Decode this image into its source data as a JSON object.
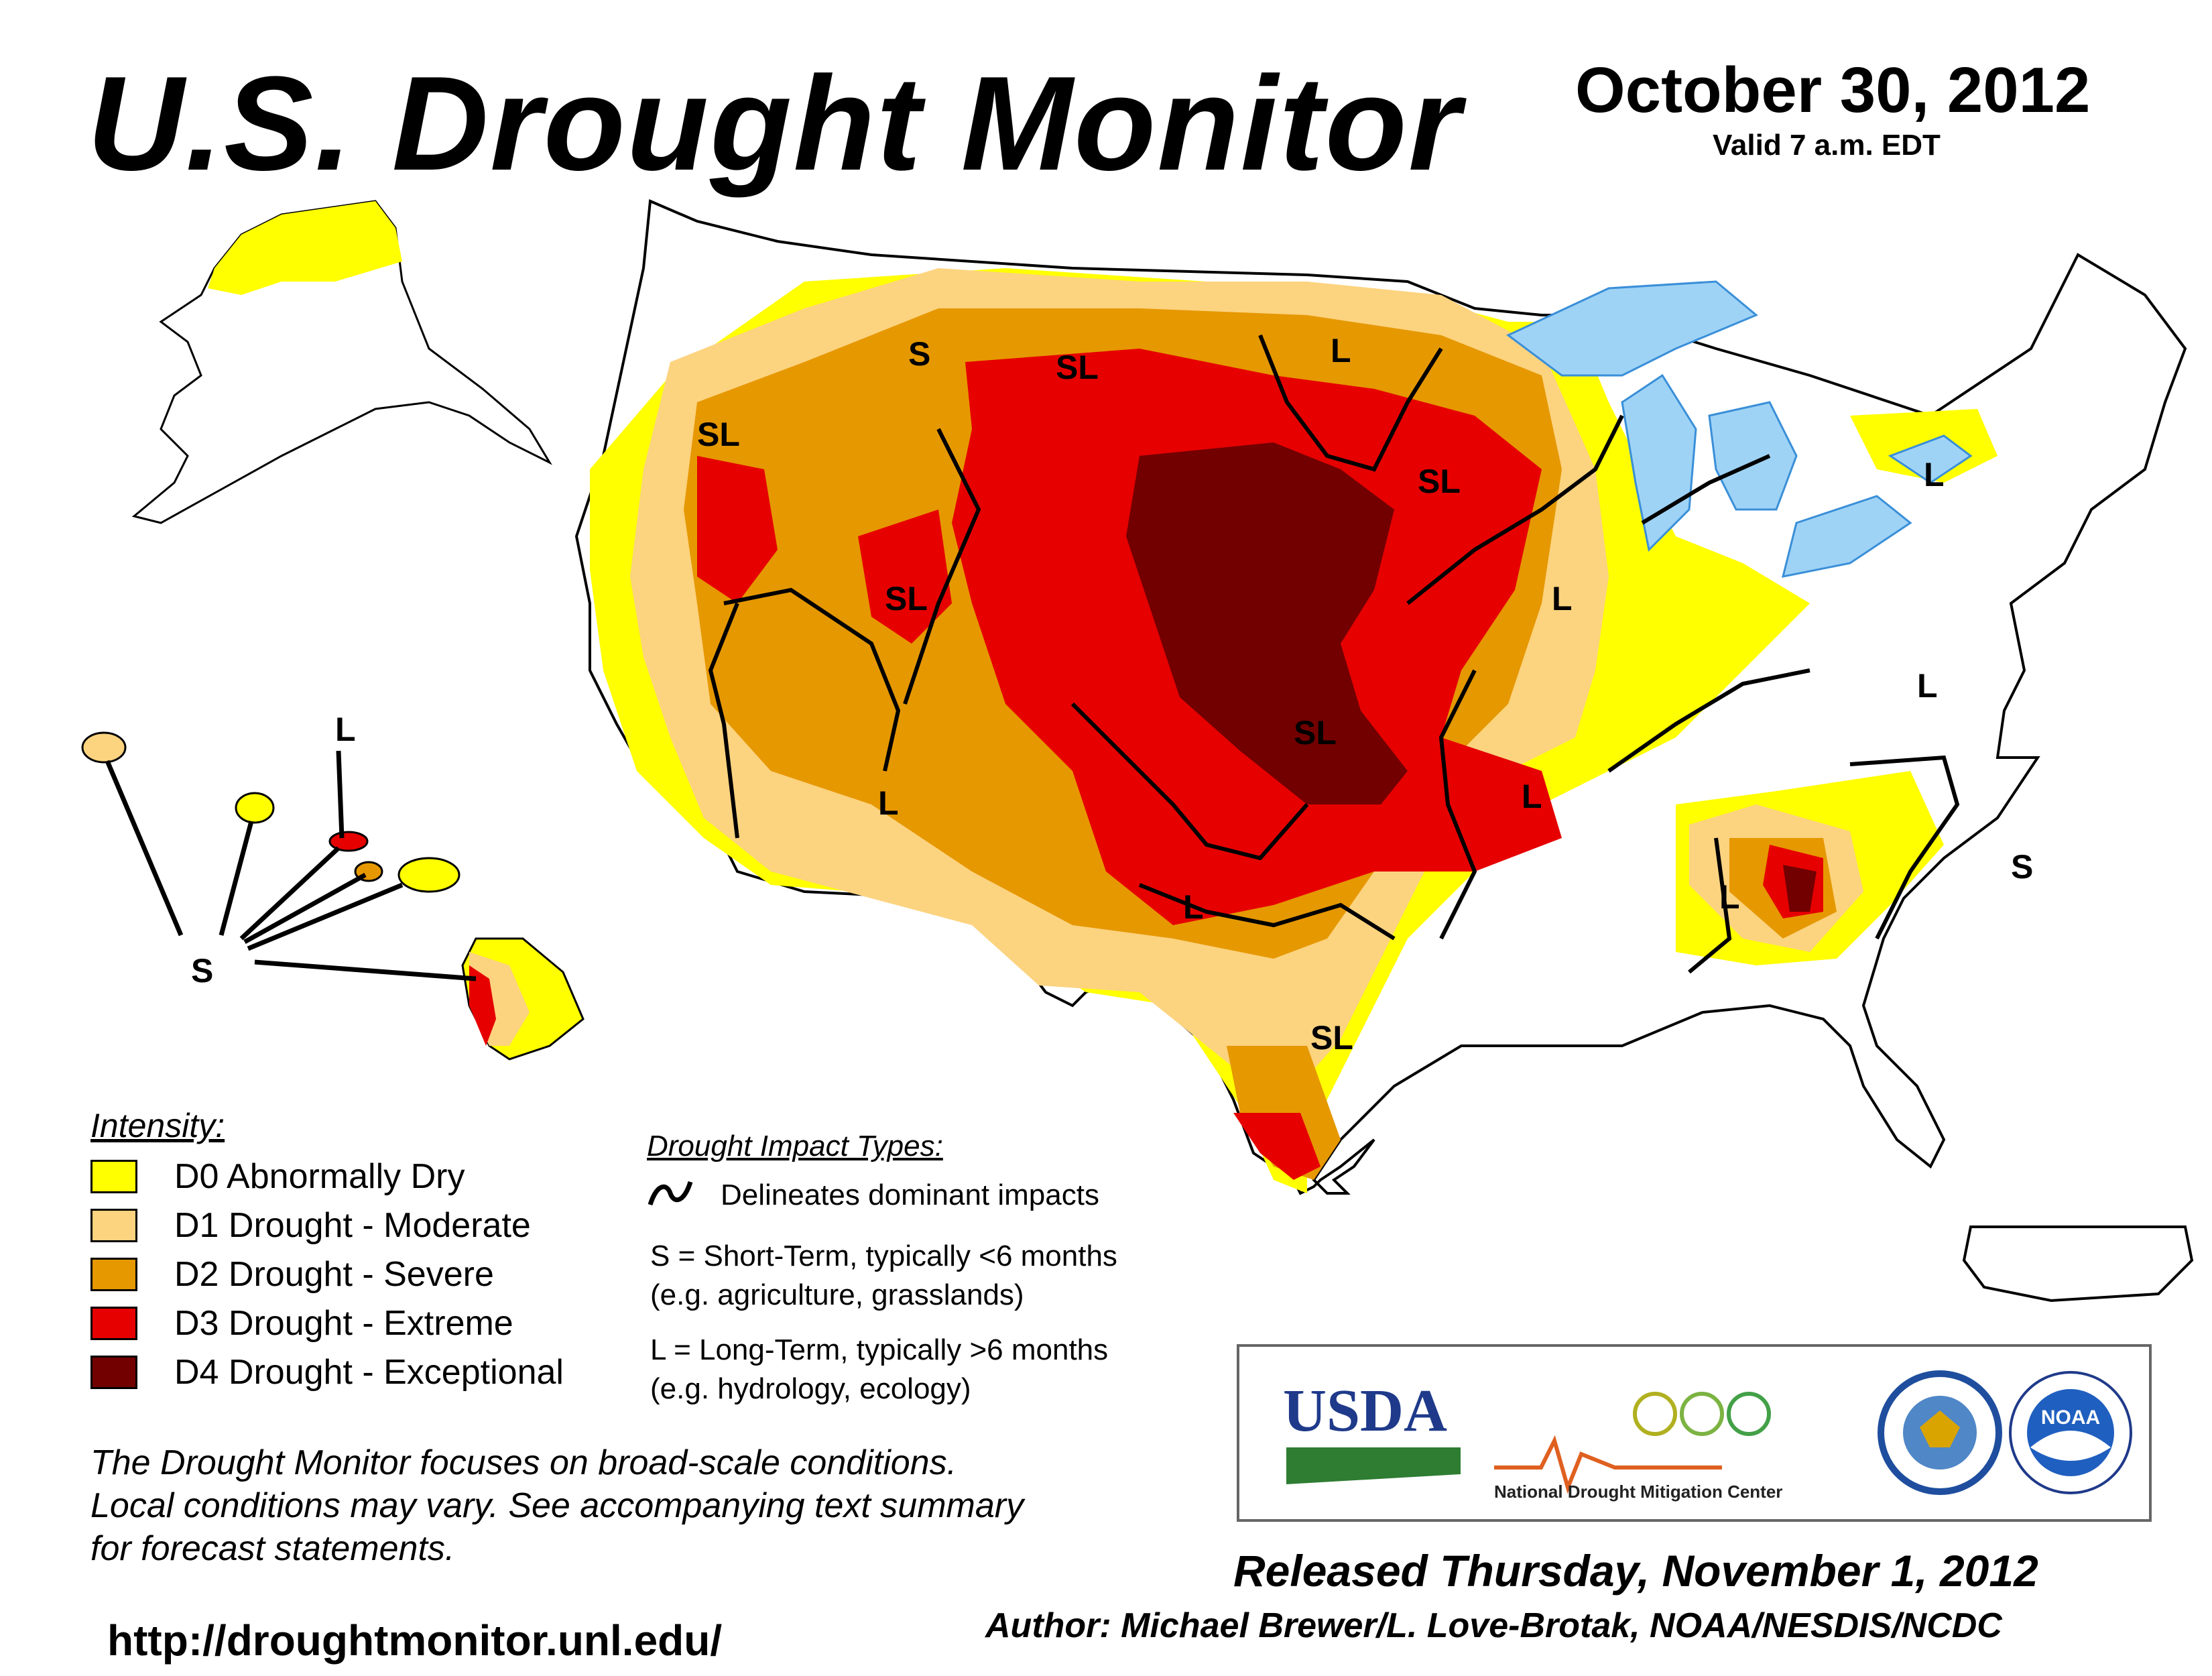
{
  "header": {
    "title": "U.S. Drought Monitor",
    "date": "October 30, 2012",
    "valid": "Valid 7 a.m. EDT"
  },
  "colors": {
    "D0": "#ffff00",
    "D1": "#fcd37f",
    "D2": "#e69800",
    "D3": "#e60000",
    "D4": "#730000",
    "water": "#9fd3f5",
    "rivers": "#3a8fd8",
    "boundaries": "#9a9a9a"
  },
  "map": {
    "impact_labels": [
      "SL",
      "S",
      "SL",
      "L",
      "SL",
      "SL",
      "L",
      "L",
      "SL",
      "SL",
      "L",
      "L",
      "L",
      "L",
      "L",
      "SL",
      "L",
      "S",
      "L",
      "S"
    ],
    "hawaii_labels": [
      "L",
      "S"
    ]
  },
  "legend": {
    "intensity_title": "Intensity:",
    "items": [
      {
        "label": "D0 Abnormally Dry",
        "color": "#ffff00"
      },
      {
        "label": "D1 Drought - Moderate",
        "color": "#fcd37f"
      },
      {
        "label": "D2 Drought - Severe",
        "color": "#e69800"
      },
      {
        "label": "D3 Drought - Extreme",
        "color": "#e60000"
      },
      {
        "label": "D4 Drought - Exceptional",
        "color": "#730000"
      }
    ],
    "impact_title": "Drought Impact Types:",
    "impact_line": "Delineates dominant impacts",
    "short_term": "S = Short-Term, typically <6 months",
    "short_term_eg": "(e.g. agriculture, grasslands)",
    "long_term": "L = Long-Term, typically >6 months",
    "long_term_eg": "(e.g. hydrology, ecology)"
  },
  "footer": {
    "note_1": "The Drought Monitor focuses on broad-scale conditions.",
    "note_2": "Local conditions may vary. See accompanying text summary",
    "note_3": "for forecast statements.",
    "url": "http://droughtmonitor.unl.edu/",
    "released": "Released Thursday, November 1, 2012",
    "author": "Author: Michael Brewer/L. Love-Brotak, NOAA/NESDIS/NCDC"
  },
  "logos": {
    "usda": "USDA",
    "ndmc": "National Drought Mitigation Center",
    "commerce_seal": "DEPARTMENT OF COMMERCE · UNITED STATES OF AMERICA",
    "noaa": "NOAA"
  }
}
